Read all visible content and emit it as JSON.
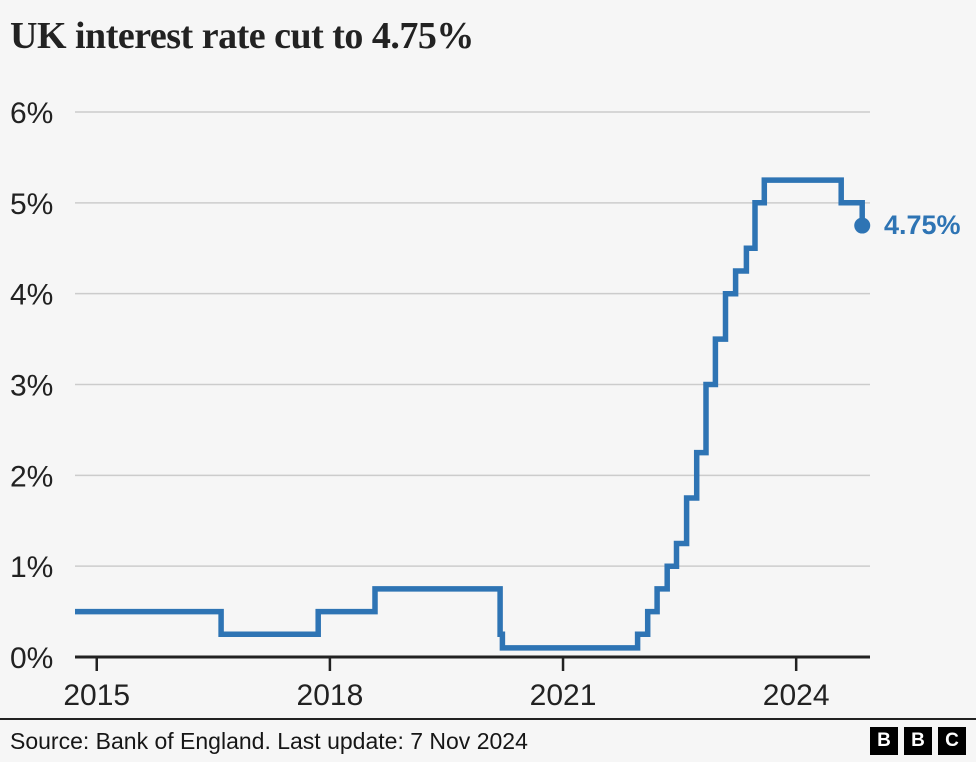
{
  "title": "UK interest rate cut to 4.75%",
  "chart_data": {
    "type": "line",
    "subtype": "step-after",
    "series_name": "UK interest rate",
    "unit": "%",
    "title": "UK interest rate cut to 4.75%",
    "x_domain": [
      2014.72,
      2024.95
    ],
    "ylim": [
      0,
      6
    ],
    "grid": true,
    "y_ticks": [
      {
        "value": 0,
        "label": "0%"
      },
      {
        "value": 1,
        "label": "1%"
      },
      {
        "value": 2,
        "label": "2%"
      },
      {
        "value": 3,
        "label": "3%"
      },
      {
        "value": 4,
        "label": "4%"
      },
      {
        "value": 5,
        "label": "5%"
      },
      {
        "value": 6,
        "label": "6%"
      }
    ],
    "x_ticks": [
      {
        "value": 2015,
        "label": "2015"
      },
      {
        "value": 2018,
        "label": "2018"
      },
      {
        "value": 2021,
        "label": "2021"
      },
      {
        "value": 2024,
        "label": "2024"
      }
    ],
    "points": [
      {
        "year": 2014.72,
        "value": 0.5
      },
      {
        "year": 2016.6,
        "value": 0.25
      },
      {
        "year": 2017.85,
        "value": 0.5
      },
      {
        "year": 2018.58,
        "value": 0.75
      },
      {
        "year": 2020.19,
        "value": 0.25
      },
      {
        "year": 2020.22,
        "value": 0.1
      },
      {
        "year": 2021.96,
        "value": 0.25
      },
      {
        "year": 2022.09,
        "value": 0.5
      },
      {
        "year": 2022.21,
        "value": 0.75
      },
      {
        "year": 2022.34,
        "value": 1.0
      },
      {
        "year": 2022.46,
        "value": 1.25
      },
      {
        "year": 2022.59,
        "value": 1.75
      },
      {
        "year": 2022.72,
        "value": 2.25
      },
      {
        "year": 2022.84,
        "value": 3.0
      },
      {
        "year": 2022.96,
        "value": 3.5
      },
      {
        "year": 2023.09,
        "value": 4.0
      },
      {
        "year": 2023.22,
        "value": 4.25
      },
      {
        "year": 2023.36,
        "value": 4.5
      },
      {
        "year": 2023.47,
        "value": 5.0
      },
      {
        "year": 2023.59,
        "value": 5.25
      },
      {
        "year": 2024.58,
        "value": 5.0
      },
      {
        "year": 2024.85,
        "value": 4.75
      }
    ],
    "end_label": "4.75%",
    "end_value": 4.75
  },
  "colors": {
    "background": "#f6f6f6",
    "line": "#2e74b4",
    "end_label": "#2e74b4",
    "text": "#222222",
    "grid": "#cccccc",
    "axis": "#222222"
  },
  "footer": {
    "source": "Source: Bank of England. Last update: 7 Nov 2024",
    "logo_letters": [
      "B",
      "B",
      "C"
    ]
  }
}
